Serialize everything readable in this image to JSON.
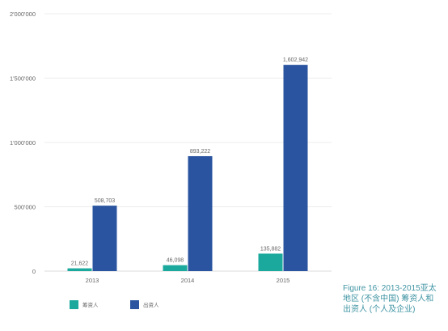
{
  "chart_data": {
    "type": "bar",
    "categories": [
      "2013",
      "2014",
      "2015"
    ],
    "series": [
      {
        "name": "筹资人",
        "color": "#1aa99c",
        "values": [
          21622,
          46098,
          135882
        ],
        "labels": [
          "21,622",
          "46,098",
          "135,882"
        ]
      },
      {
        "name": "出资人",
        "color": "#2a54a0",
        "values": [
          508703,
          893222,
          1602942
        ],
        "labels": [
          "508,703",
          "893,222",
          "1,602,942"
        ]
      }
    ],
    "ylim": [
      0,
      2000000
    ],
    "yticks": [
      {
        "value": 0,
        "label": "0"
      },
      {
        "value": 500000,
        "label": "500'000"
      },
      {
        "value": 1000000,
        "label": "1'000'000"
      },
      {
        "value": 1500000,
        "label": "1'500'000"
      },
      {
        "value": 2000000,
        "label": "2'000'000"
      }
    ],
    "grid": true,
    "legend_position": "bottom-left"
  },
  "caption": {
    "lines": [
      "Figure 16: 2013-2015亚太",
      "地区 (不含中国) 筹资人和",
      "出资人 (个人及企业)"
    ]
  }
}
